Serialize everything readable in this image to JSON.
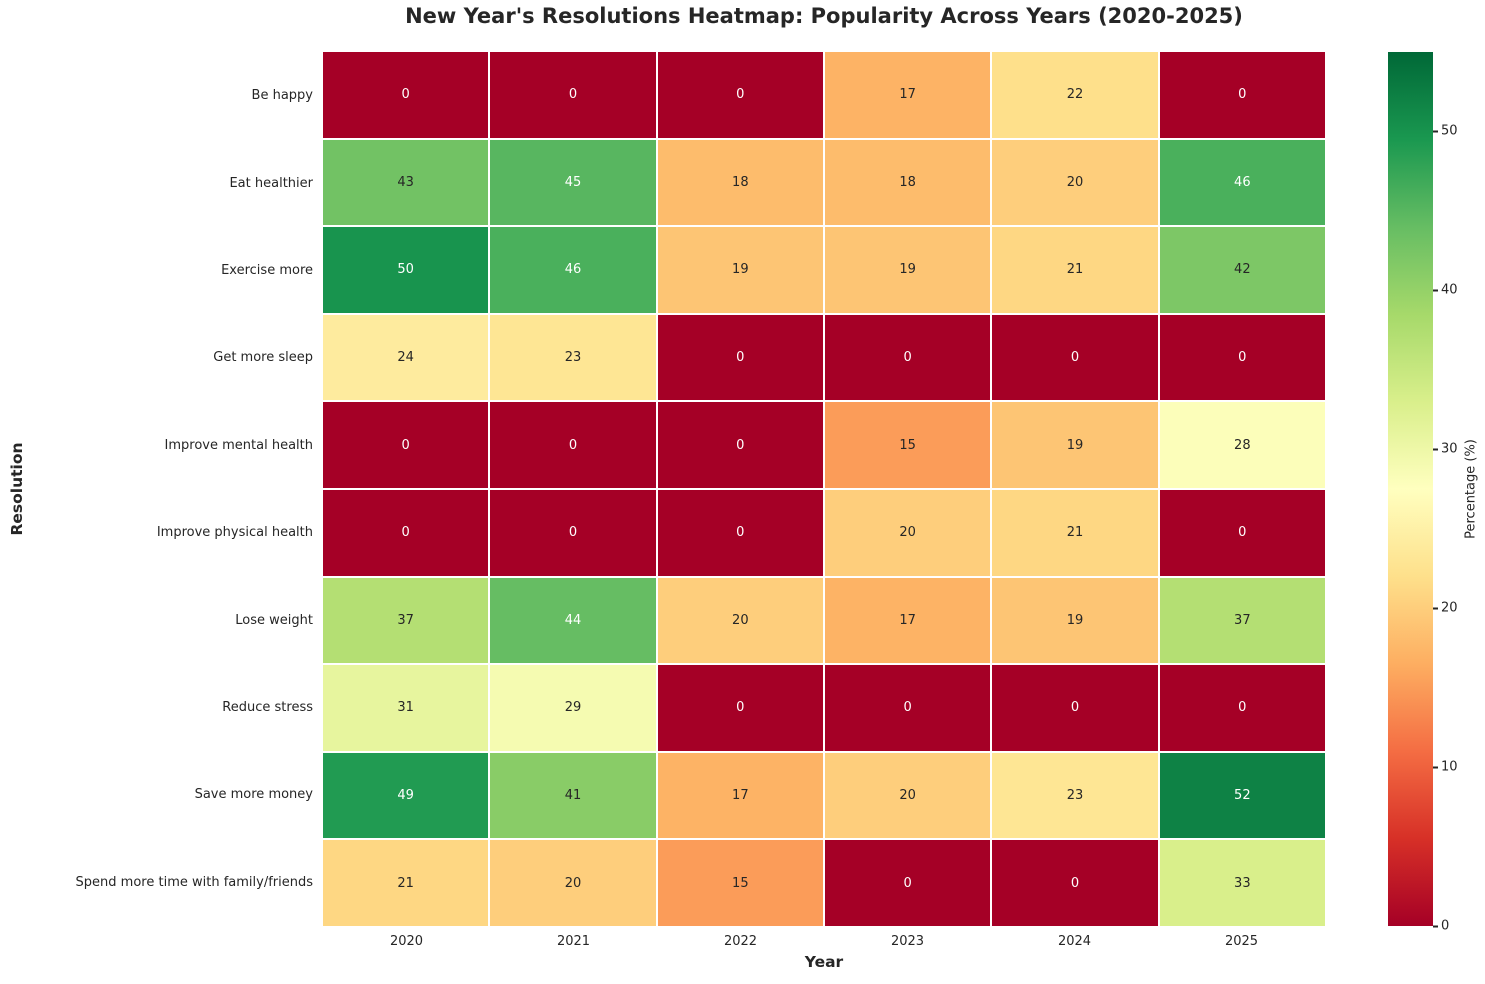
{
  "chart_data": {
    "type": "heatmap",
    "title": "New Year's Resolutions Heatmap: Popularity Across Years (2020-2025)",
    "xlabel": "Year",
    "ylabel": "Resolution",
    "columns": [
      "2020",
      "2021",
      "2022",
      "2023",
      "2024",
      "2025"
    ],
    "rows": [
      "Be happy",
      "Eat healthier",
      "Exercise more",
      "Get more sleep",
      "Improve mental health",
      "Improve physical health",
      "Lose weight",
      "Reduce stress",
      "Save more money",
      "Spend more time with family/friends"
    ],
    "values": [
      [
        0,
        0,
        0,
        17,
        22,
        0
      ],
      [
        43,
        45,
        18,
        18,
        20,
        46
      ],
      [
        50,
        46,
        19,
        19,
        21,
        42
      ],
      [
        24,
        23,
        0,
        0,
        0,
        0
      ],
      [
        0,
        0,
        0,
        15,
        19,
        28
      ],
      [
        0,
        0,
        0,
        20,
        21,
        0
      ],
      [
        37,
        44,
        20,
        17,
        19,
        37
      ],
      [
        31,
        29,
        0,
        0,
        0,
        0
      ],
      [
        49,
        41,
        17,
        20,
        23,
        52
      ],
      [
        21,
        20,
        15,
        0,
        0,
        33
      ]
    ],
    "colorbar": {
      "label": "Percentage (%)",
      "ticks": [
        0,
        10,
        20,
        30,
        40,
        50
      ],
      "vmin": 0,
      "vmax": 55
    },
    "colormap": {
      "name": "RdYlGn",
      "anchors": [
        "#a50026",
        "#d73027",
        "#f46d43",
        "#fdae61",
        "#fee08b",
        "#ffffbf",
        "#d9ef8b",
        "#a6d96a",
        "#66bd63",
        "#1a9850",
        "#006837"
      ]
    },
    "text_colors": {
      "light": "#ffffff",
      "dark": "#262626"
    },
    "layout": {
      "grid": "cells separated by white 2px lines",
      "legend_position": "right colorbar"
    }
  }
}
